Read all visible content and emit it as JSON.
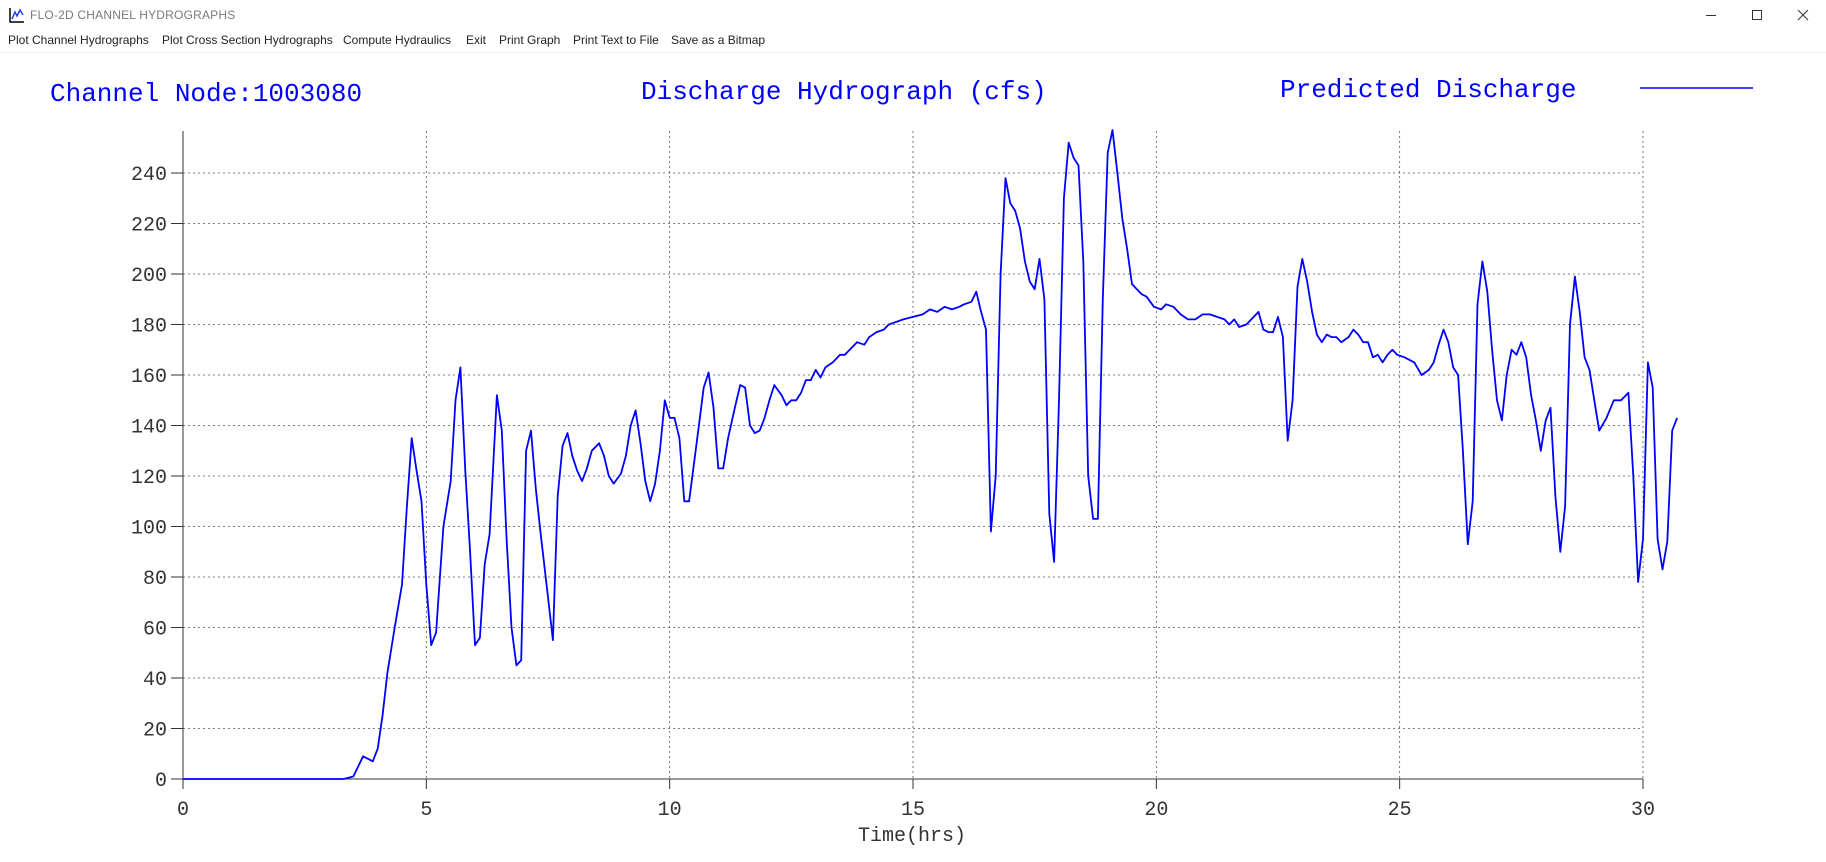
{
  "window": {
    "title": "FLO-2D CHANNEL HYDROGRAPHS"
  },
  "menu": {
    "items": [
      "Plot Channel Hydrographs",
      "Plot Cross Section Hydrographs",
      "Compute Hydraulics",
      "Exit",
      "Print Graph",
      "Print Text to File",
      "Save as a Bitmap"
    ]
  },
  "header": {
    "node_text": "Channel Node:1003080",
    "title": "Discharge Hydrograph (cfs)",
    "legend": "Predicted Discharge"
  },
  "colors": {
    "series": "#0000ff",
    "text": "#0000ff"
  },
  "chart_data": {
    "type": "line",
    "title": "Discharge Hydrograph (cfs)",
    "xlabel": "Time(hrs)",
    "ylabel": "",
    "xlim": [
      0,
      30
    ],
    "ylim": [
      0,
      250
    ],
    "xticks": [
      0,
      5,
      10,
      15,
      20,
      25,
      30
    ],
    "yticks": [
      0,
      20,
      40,
      60,
      80,
      100,
      120,
      140,
      160,
      180,
      200,
      220,
      240
    ],
    "grid": true,
    "legend_position": "top-right",
    "series": [
      {
        "name": "Predicted Discharge",
        "points": [
          [
            0,
            0
          ],
          [
            3.3,
            0
          ],
          [
            3.5,
            1
          ],
          [
            3.6,
            5
          ],
          [
            3.7,
            9
          ],
          [
            3.9,
            7
          ],
          [
            4.0,
            12
          ],
          [
            4.1,
            25
          ],
          [
            4.2,
            42
          ],
          [
            4.35,
            60
          ],
          [
            4.5,
            77
          ],
          [
            4.6,
            108
          ],
          [
            4.7,
            135
          ],
          [
            4.8,
            122
          ],
          [
            4.9,
            110
          ],
          [
            5.0,
            77
          ],
          [
            5.1,
            53
          ],
          [
            5.2,
            58
          ],
          [
            5.35,
            100
          ],
          [
            5.5,
            118
          ],
          [
            5.6,
            150
          ],
          [
            5.7,
            163
          ],
          [
            5.8,
            122
          ],
          [
            5.9,
            90
          ],
          [
            6.0,
            53
          ],
          [
            6.1,
            56
          ],
          [
            6.2,
            85
          ],
          [
            6.3,
            97
          ],
          [
            6.45,
            152
          ],
          [
            6.55,
            138
          ],
          [
            6.65,
            95
          ],
          [
            6.75,
            60
          ],
          [
            6.85,
            45
          ],
          [
            6.95,
            47
          ],
          [
            7.05,
            130
          ],
          [
            7.15,
            138
          ],
          [
            7.25,
            115
          ],
          [
            7.35,
            97
          ],
          [
            7.5,
            72
          ],
          [
            7.6,
            55
          ],
          [
            7.7,
            112
          ],
          [
            7.8,
            132
          ],
          [
            7.9,
            137
          ],
          [
            8.0,
            128
          ],
          [
            8.1,
            122
          ],
          [
            8.2,
            118
          ],
          [
            8.3,
            123
          ],
          [
            8.4,
            130
          ],
          [
            8.55,
            133
          ],
          [
            8.65,
            128
          ],
          [
            8.75,
            120
          ],
          [
            8.85,
            117
          ],
          [
            9.0,
            121
          ],
          [
            9.1,
            128
          ],
          [
            9.2,
            140
          ],
          [
            9.3,
            146
          ],
          [
            9.4,
            133
          ],
          [
            9.5,
            118
          ],
          [
            9.6,
            110
          ],
          [
            9.7,
            117
          ],
          [
            9.8,
            130
          ],
          [
            9.9,
            150
          ],
          [
            10.0,
            143
          ],
          [
            10.1,
            143
          ],
          [
            10.2,
            135
          ],
          [
            10.3,
            110
          ],
          [
            10.4,
            110
          ],
          [
            10.5,
            125
          ],
          [
            10.6,
            140
          ],
          [
            10.7,
            155
          ],
          [
            10.8,
            161
          ],
          [
            10.9,
            147
          ],
          [
            11.0,
            123
          ],
          [
            11.1,
            123
          ],
          [
            11.2,
            135
          ],
          [
            11.35,
            148
          ],
          [
            11.45,
            156
          ],
          [
            11.55,
            155
          ],
          [
            11.65,
            140
          ],
          [
            11.75,
            137
          ],
          [
            11.85,
            138
          ],
          [
            11.95,
            143
          ],
          [
            12.05,
            150
          ],
          [
            12.15,
            156
          ],
          [
            12.3,
            152
          ],
          [
            12.4,
            148
          ],
          [
            12.5,
            150
          ],
          [
            12.6,
            150
          ],
          [
            12.7,
            153
          ],
          [
            12.8,
            158
          ],
          [
            12.9,
            158
          ],
          [
            13.0,
            162
          ],
          [
            13.1,
            159
          ],
          [
            13.2,
            163
          ],
          [
            13.35,
            165
          ],
          [
            13.5,
            168
          ],
          [
            13.6,
            168
          ],
          [
            13.7,
            170
          ],
          [
            13.85,
            173
          ],
          [
            14.0,
            172
          ],
          [
            14.1,
            175
          ],
          [
            14.25,
            177
          ],
          [
            14.4,
            178
          ],
          [
            14.5,
            180
          ],
          [
            14.65,
            181
          ],
          [
            14.8,
            182
          ],
          [
            15.0,
            183
          ],
          [
            15.2,
            184
          ],
          [
            15.35,
            186
          ],
          [
            15.5,
            185
          ],
          [
            15.65,
            187
          ],
          [
            15.8,
            186
          ],
          [
            15.95,
            187
          ],
          [
            16.05,
            188
          ],
          [
            16.2,
            189
          ],
          [
            16.3,
            193
          ],
          [
            16.4,
            185
          ],
          [
            16.5,
            178
          ],
          [
            16.6,
            98
          ],
          [
            16.7,
            120
          ],
          [
            16.8,
            200
          ],
          [
            16.9,
            238
          ],
          [
            17.0,
            228
          ],
          [
            17.1,
            225
          ],
          [
            17.2,
            218
          ],
          [
            17.3,
            205
          ],
          [
            17.4,
            197
          ],
          [
            17.5,
            194
          ],
          [
            17.6,
            206
          ],
          [
            17.7,
            190
          ],
          [
            17.8,
            105
          ],
          [
            17.9,
            86
          ],
          [
            18.0,
            150
          ],
          [
            18.1,
            230
          ],
          [
            18.2,
            252
          ],
          [
            18.3,
            246
          ],
          [
            18.4,
            243
          ],
          [
            18.5,
            205
          ],
          [
            18.6,
            120
          ],
          [
            18.7,
            103
          ],
          [
            18.8,
            103
          ],
          [
            18.9,
            190
          ],
          [
            19.0,
            248
          ],
          [
            19.1,
            257
          ],
          [
            19.2,
            240
          ],
          [
            19.3,
            222
          ],
          [
            19.4,
            210
          ],
          [
            19.5,
            196
          ],
          [
            19.6,
            194
          ],
          [
            19.7,
            192
          ],
          [
            19.8,
            191
          ],
          [
            19.95,
            187
          ],
          [
            20.1,
            186
          ],
          [
            20.2,
            188
          ],
          [
            20.35,
            187
          ],
          [
            20.5,
            184
          ],
          [
            20.65,
            182
          ],
          [
            20.8,
            182
          ],
          [
            20.95,
            184
          ],
          [
            21.1,
            184
          ],
          [
            21.25,
            183
          ],
          [
            21.4,
            182
          ],
          [
            21.5,
            180
          ],
          [
            21.6,
            182
          ],
          [
            21.7,
            179
          ],
          [
            21.85,
            180
          ],
          [
            22.0,
            183
          ],
          [
            22.1,
            185
          ],
          [
            22.2,
            178
          ],
          [
            22.3,
            177
          ],
          [
            22.4,
            177
          ],
          [
            22.5,
            183
          ],
          [
            22.6,
            175
          ],
          [
            22.7,
            134
          ],
          [
            22.8,
            150
          ],
          [
            22.9,
            195
          ],
          [
            23.0,
            206
          ],
          [
            23.1,
            197
          ],
          [
            23.2,
            185
          ],
          [
            23.3,
            176
          ],
          [
            23.4,
            173
          ],
          [
            23.5,
            176
          ],
          [
            23.6,
            175
          ],
          [
            23.7,
            175
          ],
          [
            23.8,
            173
          ],
          [
            23.95,
            175
          ],
          [
            24.05,
            178
          ],
          [
            24.15,
            176
          ],
          [
            24.25,
            173
          ],
          [
            24.35,
            173
          ],
          [
            24.45,
            167
          ],
          [
            24.55,
            168
          ],
          [
            24.65,
            165
          ],
          [
            24.75,
            168
          ],
          [
            24.85,
            170
          ],
          [
            24.95,
            168
          ],
          [
            25.1,
            167
          ],
          [
            25.3,
            165
          ],
          [
            25.45,
            160
          ],
          [
            25.6,
            162
          ],
          [
            25.7,
            165
          ],
          [
            25.8,
            172
          ],
          [
            25.9,
            178
          ],
          [
            26.0,
            173
          ],
          [
            26.1,
            163
          ],
          [
            26.2,
            160
          ],
          [
            26.3,
            130
          ],
          [
            26.4,
            93
          ],
          [
            26.5,
            110
          ],
          [
            26.6,
            188
          ],
          [
            26.7,
            205
          ],
          [
            26.8,
            193
          ],
          [
            26.9,
            170
          ],
          [
            27.0,
            150
          ],
          [
            27.1,
            142
          ],
          [
            27.2,
            160
          ],
          [
            27.3,
            170
          ],
          [
            27.4,
            168
          ],
          [
            27.5,
            173
          ],
          [
            27.6,
            167
          ],
          [
            27.7,
            152
          ],
          [
            27.8,
            142
          ],
          [
            27.9,
            130
          ],
          [
            28.0,
            142
          ],
          [
            28.1,
            147
          ],
          [
            28.2,
            112
          ],
          [
            28.3,
            90
          ],
          [
            28.4,
            108
          ],
          [
            28.5,
            180
          ],
          [
            28.6,
            199
          ],
          [
            28.7,
            185
          ],
          [
            28.8,
            167
          ],
          [
            28.9,
            162
          ],
          [
            29.0,
            150
          ],
          [
            29.1,
            138
          ],
          [
            29.25,
            143
          ],
          [
            29.4,
            150
          ],
          [
            29.55,
            150
          ],
          [
            29.7,
            153
          ],
          [
            29.8,
            120
          ],
          [
            29.9,
            78
          ],
          [
            30.0,
            95
          ],
          [
            30.1,
            165
          ],
          [
            30.2,
            155
          ],
          [
            30.3,
            95
          ],
          [
            30.4,
            83
          ],
          [
            30.5,
            94
          ],
          [
            30.6,
            138
          ],
          [
            30.7,
            143
          ]
        ]
      }
    ]
  }
}
